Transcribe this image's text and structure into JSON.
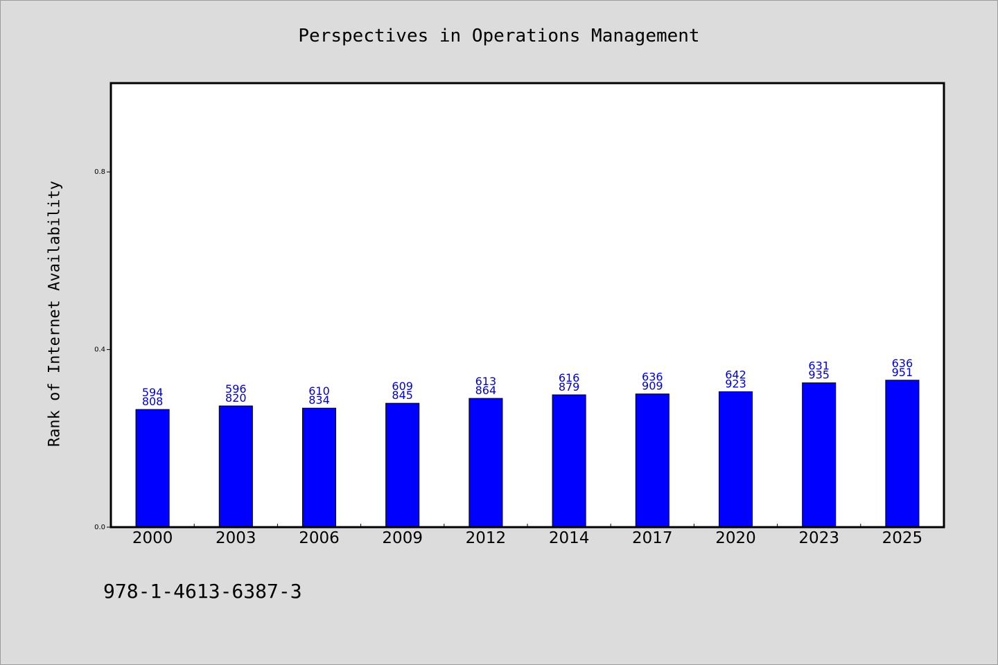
{
  "chart_data": {
    "type": "bar",
    "title": "Perspectives in Operations Management",
    "ylabel": "Rank of Internet Availability",
    "xlabel": "",
    "ylim": [
      0,
      1.0
    ],
    "yticks": [
      0.0,
      0.4,
      0.8
    ],
    "ytick_labels": [
      "0.0",
      "0.4",
      "0.8"
    ],
    "categories": [
      "2000",
      "2003",
      "2006",
      "2009",
      "2012",
      "2014",
      "2017",
      "2020",
      "2023",
      "2025"
    ],
    "values": [
      0.265,
      0.273,
      0.268,
      0.279,
      0.29,
      0.298,
      0.3,
      0.305,
      0.325,
      0.331
    ],
    "label_top": [
      "594",
      "596",
      "610",
      "609",
      "613",
      "616",
      "636",
      "642",
      "631",
      "636"
    ],
    "label_bottom": [
      "808",
      "820",
      "834",
      "845",
      "864",
      "879",
      "909",
      "923",
      "935",
      "951"
    ],
    "bar_color": "#0000ff",
    "label_color": "#0000cc",
    "plot_background": "#ffffff",
    "figure_background": "#dcdcdc",
    "grid": false,
    "legend": "none"
  },
  "footer": {
    "isbn": "978-1-4613-6387-3"
  }
}
